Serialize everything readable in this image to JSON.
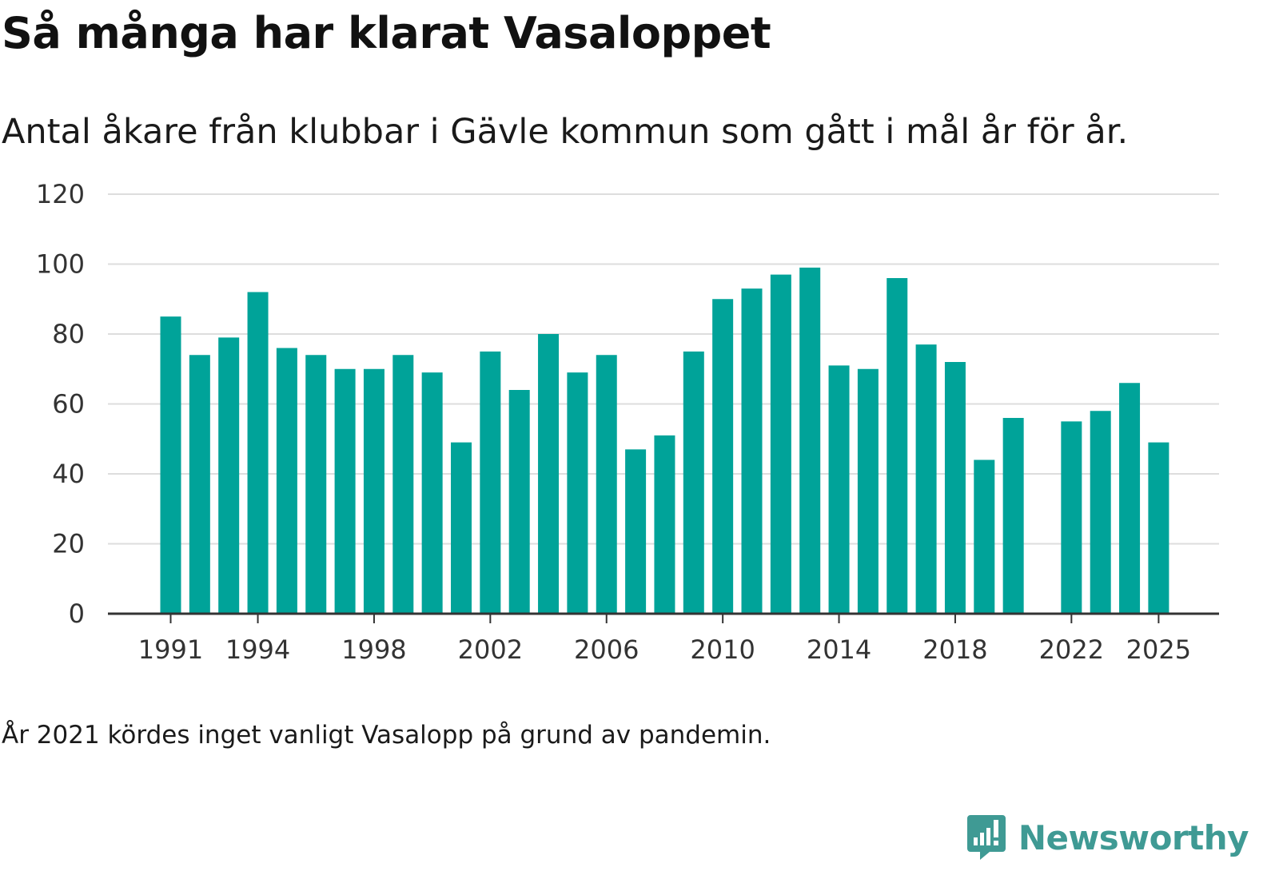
{
  "title": "Så många har klarat Vasaloppet",
  "subtitle": "Antal åkare från klubbar i Gävle kommun som gått i mål år för år.",
  "note": "År 2021 kördes inget vanligt Vasalopp på grund av pandemin.",
  "brand": {
    "name": "Newsworthy",
    "icon": "newsworthy-logo-icon",
    "color": "#3f9a94"
  },
  "colors": {
    "bar": "#00a399",
    "grid": "#dddddd",
    "axis": "#333333",
    "text": "#333333"
  },
  "chart_data": {
    "type": "bar",
    "title": "Så många har klarat Vasaloppet",
    "xlabel": "",
    "ylabel": "",
    "ylim": [
      0,
      120
    ],
    "yticks": [
      0,
      20,
      40,
      60,
      80,
      100,
      120
    ],
    "xticks": [
      1991,
      1994,
      1998,
      2002,
      2006,
      2010,
      2014,
      2018,
      2022,
      2025
    ],
    "grid": true,
    "categories": [
      1991,
      1992,
      1993,
      1994,
      1995,
      1996,
      1997,
      1998,
      1999,
      2000,
      2001,
      2002,
      2003,
      2004,
      2005,
      2006,
      2007,
      2008,
      2009,
      2010,
      2011,
      2012,
      2013,
      2014,
      2015,
      2016,
      2017,
      2018,
      2019,
      2020,
      2021,
      2022,
      2023,
      2024,
      2025
    ],
    "values": [
      85,
      74,
      79,
      92,
      76,
      74,
      70,
      70,
      74,
      69,
      49,
      75,
      64,
      80,
      69,
      74,
      47,
      51,
      75,
      90,
      93,
      97,
      99,
      71,
      70,
      96,
      77,
      72,
      44,
      56,
      null,
      55,
      58,
      66,
      49
    ]
  }
}
